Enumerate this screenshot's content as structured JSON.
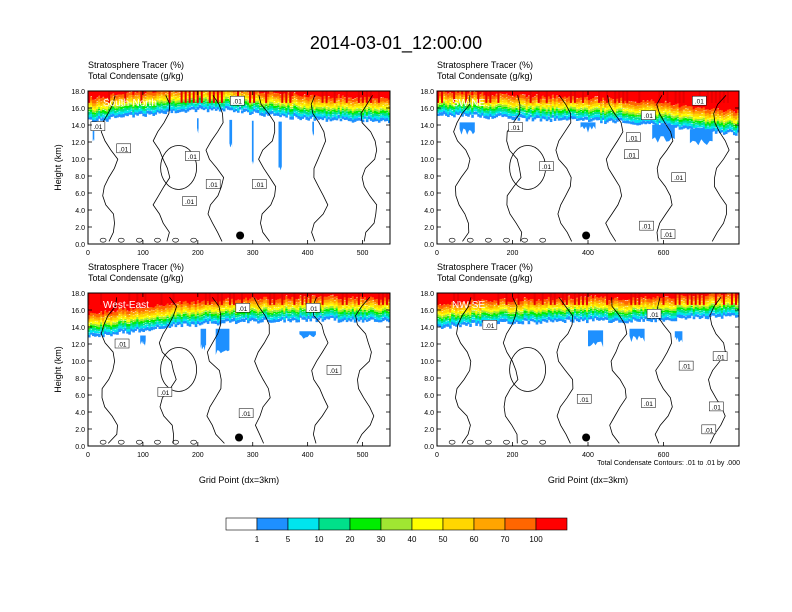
{
  "title": "2014-03-01_12:00:00",
  "panel_common": {
    "subtitle_line1": "Stratosphere Tracer   (%)",
    "subtitle_line2": "Total Condensate   (g/kg)",
    "ylabel": "Height (km)",
    "xlabel": "Grid Point (dx=3km)",
    "contour_label": ".01"
  },
  "contour_note": "Total Condensate Contours: .01 to .01 by .000",
  "colorbar": {
    "levels": [
      "1",
      "5",
      "10",
      "20",
      "30",
      "40",
      "50",
      "60",
      "70",
      "100"
    ],
    "colors": [
      "#ffffff",
      "#1e90ff",
      "#00e5ee",
      "#00e08a",
      "#00ee00",
      "#a0e632",
      "#ffff00",
      "#ffd700",
      "#ffa500",
      "#ff6600",
      "#ff0000"
    ]
  },
  "chart_data": [
    {
      "type": "heatmap",
      "name": "South-North",
      "subtitle": [
        "Stratosphere Tracer   (%)",
        "Total Condensate   (g/kg)"
      ],
      "ylabel": "Height (km)",
      "xlabel": "",
      "xlim": [
        0,
        550
      ],
      "ylim": [
        0,
        18
      ],
      "xticks": [
        0,
        100,
        200,
        300,
        400,
        500
      ],
      "yticks": [
        "0.0",
        "2.0",
        "4.0",
        "6.0",
        "8.0",
        "10.0",
        "12.0",
        "14.0",
        "16.0",
        "18.0"
      ],
      "tracer_base_km": [
        14.4,
        14.8,
        15.2,
        15.5,
        15.8,
        15.7,
        15.4,
        15.0,
        14.7,
        14.6,
        14.5,
        14.4
      ],
      "cloud_km": [
        [
          10,
          3,
          14.2,
          12.4
        ],
        [
          200,
          3,
          14.8,
          13.3
        ],
        [
          260,
          5,
          14.6,
          11.5
        ],
        [
          300,
          3,
          14.5,
          9.5
        ],
        [
          350,
          6,
          14.4,
          9.0
        ],
        [
          410,
          3,
          14.4,
          13.0
        ]
      ],
      "dot": [
        277,
        1.0
      ],
      "contour_labels": [
        [
          18,
          13.8
        ],
        [
          65,
          11.2
        ],
        [
          190,
          10.3
        ],
        [
          228,
          7.0
        ],
        [
          185,
          5.0
        ],
        [
          312,
          7.0
        ],
        [
          272,
          16.8
        ]
      ]
    },
    {
      "type": "heatmap",
      "name": "SW-NE",
      "subtitle": [
        "Stratosphere Tracer   (%)",
        "Total Condensate   (g/kg)"
      ],
      "ylabel": "",
      "xlabel": "",
      "xlim": [
        0,
        800
      ],
      "ylim": [
        0,
        18
      ],
      "xticks": [
        0,
        200,
        400,
        600
      ],
      "yticks": [
        "0.0",
        "2.0",
        "4.0",
        "6.0",
        "8.0",
        "10.0",
        "12.0",
        "14.0",
        "16.0",
        "18.0"
      ],
      "tracer_base_km": [
        15.2,
        15.1,
        14.9,
        14.7,
        14.6,
        14.5,
        14.4,
        14.2,
        14.0,
        13.6,
        13.2,
        12.9
      ],
      "cloud_km": [
        [
          80,
          40,
          14.3,
          13.2
        ],
        [
          400,
          40,
          14.3,
          13.5
        ],
        [
          600,
          60,
          14.0,
          12.3
        ],
        [
          700,
          60,
          13.5,
          12.0
        ]
      ],
      "dot": [
        395,
        1.0
      ],
      "contour_labels": [
        [
          208,
          13.7
        ],
        [
          560,
          15.1
        ],
        [
          290,
          9.1
        ],
        [
          520,
          12.5
        ],
        [
          515,
          10.5
        ],
        [
          695,
          16.8
        ],
        [
          640,
          7.8
        ],
        [
          612,
          1.1
        ],
        [
          555,
          2.1
        ]
      ]
    },
    {
      "type": "heatmap",
      "name": "West-East",
      "subtitle": [
        "Stratosphere Tracer   (%)",
        "Total Condensate   (g/kg)"
      ],
      "ylabel": "Height (km)",
      "xlabel": "Grid Point (dx=3km)",
      "xlim": [
        0,
        550
      ],
      "ylim": [
        0,
        18
      ],
      "xticks": [
        0,
        100,
        200,
        300,
        400,
        500
      ],
      "yticks": [
        "0.0",
        "2.0",
        "4.0",
        "6.0",
        "8.0",
        "10.0",
        "12.0",
        "14.0",
        "16.0",
        "18.0"
      ],
      "tracer_base_km": [
        12.8,
        13.2,
        13.6,
        14.0,
        14.3,
        14.5,
        14.6,
        14.7,
        14.8,
        14.8,
        14.7,
        14.6
      ],
      "cloud_km": [
        [
          100,
          10,
          13.0,
          12.2
        ],
        [
          210,
          10,
          13.8,
          11.6
        ],
        [
          245,
          25,
          13.8,
          11.0
        ],
        [
          400,
          30,
          13.5,
          12.8
        ]
      ],
      "dot": [
        275,
        1.0
      ],
      "contour_labels": [
        [
          62,
          12.0
        ],
        [
          140,
          6.3
        ],
        [
          288,
          3.8
        ],
        [
          448,
          8.9
        ],
        [
          282,
          16.2
        ],
        [
          410,
          16.2
        ]
      ]
    },
    {
      "type": "heatmap",
      "name": "NW-SE",
      "subtitle": [
        "Stratosphere Tracer   (%)",
        "Total Condensate   (g/kg)"
      ],
      "ylabel": "",
      "xlabel": "Grid Point (dx=3km)",
      "xlim": [
        0,
        800
      ],
      "ylim": [
        0,
        18
      ],
      "xticks": [
        0,
        200,
        400,
        600
      ],
      "yticks": [
        "0.0",
        "2.0",
        "4.0",
        "6.0",
        "8.0",
        "10.0",
        "12.0",
        "14.0",
        "16.0",
        "18.0"
      ],
      "tracer_base_km": [
        14.0,
        14.2,
        14.4,
        14.5,
        14.6,
        14.8,
        14.7,
        14.6,
        14.8,
        15.0,
        15.2,
        15.3
      ],
      "cloud_km": [
        [
          420,
          40,
          13.6,
          12.0
        ],
        [
          530,
          40,
          13.8,
          12.6
        ],
        [
          640,
          20,
          13.5,
          12.5
        ]
      ],
      "dot": [
        395,
        1.0
      ],
      "contour_labels": [
        [
          140,
          14.2
        ],
        [
          390,
          5.5
        ],
        [
          560,
          5.0
        ],
        [
          720,
          1.9
        ],
        [
          660,
          9.4
        ],
        [
          750,
          10.5
        ],
        [
          740,
          4.6
        ],
        [
          575,
          15.5
        ]
      ]
    }
  ]
}
